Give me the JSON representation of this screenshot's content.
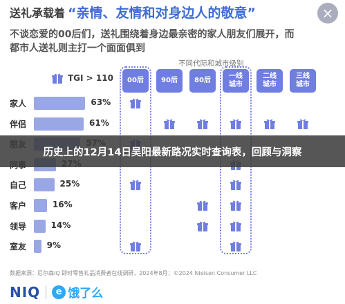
{
  "header": {
    "lead": "送礼承载着",
    "quote": "“亲情、友情和对身边人的敬意”",
    "close_glyph": "×"
  },
  "subtitle": "不谈恋爱的00后们，送礼围绕着身边最亲密的家人朋友们展开，而都市人送礼则主打一个面面俱到",
  "category_caption": "不同代际和城市级别",
  "legend": {
    "text": "TGI > 110",
    "icon": "gift-icon"
  },
  "colors": {
    "bar": "#9aa7e6",
    "column": "#6f7ee0",
    "accent": "#3f6bd6",
    "banner": "#3a3a3a"
  },
  "rows": [
    {
      "label": "家人",
      "value": "63%",
      "pct": 63
    },
    {
      "label": "伴侣",
      "value": "61%",
      "pct": 61
    },
    {
      "label": "朋友",
      "value": "57%",
      "pct": 57
    },
    {
      "label": "同事",
      "value": "27%",
      "pct": 27
    },
    {
      "label": "自己",
      "value": "25%",
      "pct": 25
    },
    {
      "label": "客户",
      "value": "16%",
      "pct": 16
    },
    {
      "label": "领导",
      "value": "14%",
      "pct": 14
    },
    {
      "label": "室友",
      "value": "9%",
      "pct": 9
    }
  ],
  "columns": [
    {
      "line1": "00后",
      "line2": "",
      "framed": true,
      "marks": [
        1,
        0,
        1,
        0,
        1,
        0,
        0,
        1
      ]
    },
    {
      "line1": "90后",
      "line2": "",
      "framed": false,
      "marks": [
        0,
        1,
        0,
        0,
        0,
        0,
        0,
        0
      ]
    },
    {
      "line1": "80后",
      "line2": "",
      "framed": false,
      "marks": [
        0,
        1,
        0,
        0,
        0,
        1,
        1,
        0
      ]
    },
    {
      "line1": "一线",
      "line2": "城市",
      "framed": true,
      "marks": [
        0,
        1,
        0,
        1,
        1,
        1,
        1,
        1
      ]
    },
    {
      "line1": "二线",
      "line2": "城市",
      "framed": false,
      "marks": [
        0,
        1,
        0,
        0,
        0,
        0,
        0,
        0
      ]
    },
    {
      "line1": "三线",
      "line2": "城市",
      "framed": false,
      "marks": [
        0,
        1,
        0,
        0,
        0,
        0,
        0,
        0
      ]
    }
  ],
  "banner": {
    "title": "历史上的12月14日吴阳最新路况实时查询表，回顾与洞察"
  },
  "source_note": "数据来源：尼尔森IQ 即时零售礼品消费者在线调研，2024年8月；©2024 Nielsen Consumer LLC",
  "footer": {
    "brand_niq": "NIQ",
    "brand_ele_mark": "e",
    "brand_ele": "饿了么"
  }
}
